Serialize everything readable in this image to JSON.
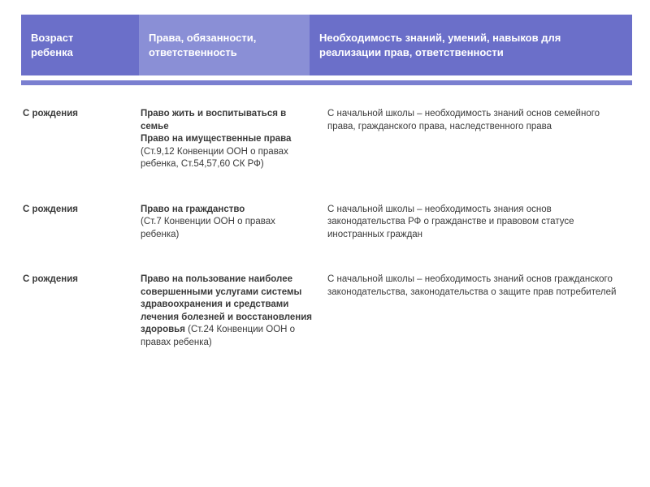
{
  "header": {
    "age": "Возраст\n ребенка",
    "rights": "Права, обязанности, ответственность",
    "knowledge": "Необходимость знаний, умений, навыков для реализации прав, ответственности"
  },
  "rows": [
    {
      "age": "С рождения",
      "rights_bold": "Право жить и воспитываться в семье\nПраво на имущественные права",
      "rights_plain": "(Ст.9,12 Конвенции ООН о правах ребенка, Ст.54,57,60 СК РФ)",
      "knowledge": "С начальной школы – необходимость знаний основ семейного права, гражданского права, наследственного права"
    },
    {
      "age": "С рождения",
      "rights_bold": "Право на гражданство",
      "rights_plain": "(Ст.7 Конвенции ООН о правах ребенка)",
      "knowledge": "С начальной школы – необходимость знания основ\nзаконодательства РФ о гражданстве и правовом статусе\nиностранных граждан"
    },
    {
      "age": "С рождения",
      "rights_bold": "Право на пользование наиболее совершенными услугами системы здравоохранения и средствами лечения болезней и восстановления здоровья",
      "rights_plain": " (Ст.24 Конвенции ООН о правах ребенка)",
      "knowledge": "С начальной школы – необходимость знаний основ гражданского законодательства, законодательства о защите прав потребителей"
    }
  ],
  "colors": {
    "header_dark": "#6b6fc9",
    "header_light": "#8a8fd6",
    "stripe": "#7a7fd0",
    "text": "#3a3a3a",
    "header_text": "#ffffff",
    "background": "#ffffff"
  }
}
